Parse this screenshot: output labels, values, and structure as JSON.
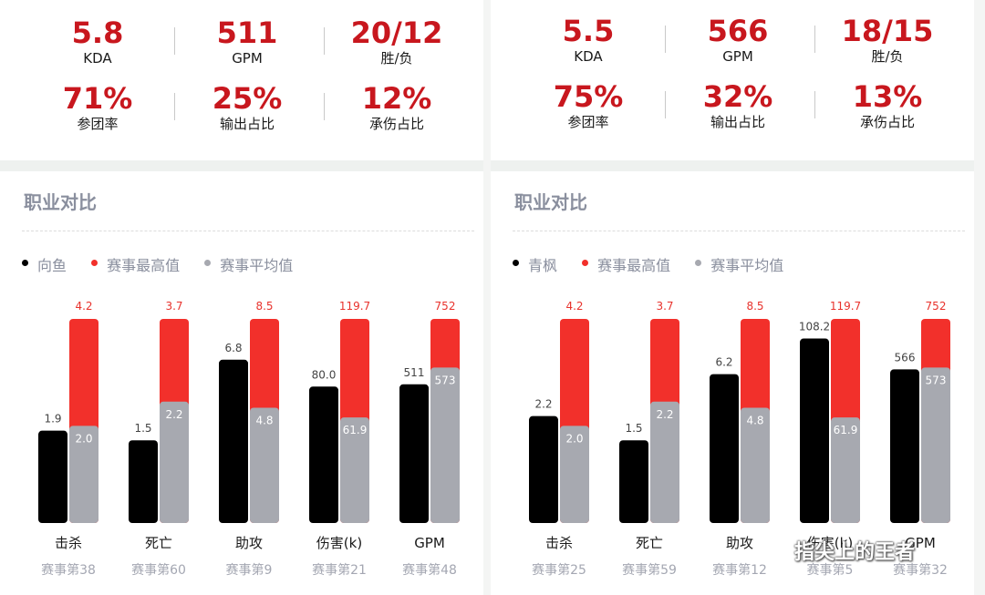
{
  "panels": [
    {
      "stats": [
        {
          "value": "5.8",
          "label": "KDA"
        },
        {
          "value": "511",
          "label": "GPM"
        },
        {
          "value": "20/12",
          "label": "胜/负"
        },
        {
          "value": "71%",
          "label": "参团率"
        },
        {
          "value": "25%",
          "label": "输出占比"
        },
        {
          "value": "12%",
          "label": "承伤占比"
        }
      ],
      "section_title": "职业对比",
      "legend": [
        {
          "name": "向鱼",
          "color": "#000000"
        },
        {
          "name": "赛事最高值",
          "color": "#f2302b"
        },
        {
          "name": "赛事平均值",
          "color": "#a7a9b0"
        }
      ],
      "chart_data": {
        "type": "bar",
        "categories": [
          "击杀",
          "死亡",
          "助攻",
          "伤害(k)",
          "GPM"
        ],
        "sublabels": [
          "赛事第38",
          "赛事第60",
          "赛事第9",
          "赛事第21",
          "赛事第48"
        ],
        "series": [
          {
            "name": "向鱼",
            "values": [
              1.9,
              1.5,
              6.8,
              80.0,
              511
            ],
            "labels": [
              "1.9",
              "1.5",
              "6.8",
              "80.0",
              "511"
            ]
          },
          {
            "name": "赛事最高值",
            "values": [
              4.2,
              3.7,
              8.5,
              119.7,
              752
            ],
            "labels": [
              "4.2",
              "3.7",
              "8.5",
              "119.7",
              "752"
            ]
          },
          {
            "name": "赛事平均值",
            "values": [
              2.0,
              2.2,
              4.8,
              61.9,
              573
            ],
            "labels": [
              "2.0",
              "2.2",
              "4.8",
              "61.9",
              "573"
            ]
          }
        ],
        "per_category_scale": true,
        "grid": false,
        "legend_position": "top-left"
      }
    },
    {
      "stats": [
        {
          "value": "5.5",
          "label": "KDA"
        },
        {
          "value": "566",
          "label": "GPM"
        },
        {
          "value": "18/15",
          "label": "胜/负"
        },
        {
          "value": "75%",
          "label": "参团率"
        },
        {
          "value": "32%",
          "label": "输出占比"
        },
        {
          "value": "13%",
          "label": "承伤占比"
        }
      ],
      "section_title": "职业对比",
      "legend": [
        {
          "name": "青枫",
          "color": "#000000"
        },
        {
          "name": "赛事最高值",
          "color": "#f2302b"
        },
        {
          "name": "赛事平均值",
          "color": "#a7a9b0"
        }
      ],
      "chart_data": {
        "type": "bar",
        "categories": [
          "击杀",
          "死亡",
          "助攻",
          "伤害(k)",
          "GPM"
        ],
        "sublabels": [
          "赛事第25",
          "赛事第59",
          "赛事第12",
          "赛事第5",
          "赛事第32"
        ],
        "series": [
          {
            "name": "青枫",
            "values": [
              2.2,
              1.5,
              6.2,
              108.2,
              566
            ],
            "labels": [
              "2.2",
              "1.5",
              "6.2",
              "108.2",
              "566"
            ]
          },
          {
            "name": "赛事最高值",
            "values": [
              4.2,
              3.7,
              8.5,
              119.7,
              752
            ],
            "labels": [
              "4.2",
              "3.7",
              "8.5",
              "119.7",
              "752"
            ]
          },
          {
            "name": "赛事平均值",
            "values": [
              2.0,
              2.2,
              4.8,
              61.9,
              573
            ],
            "labels": [
              "2.0",
              "2.2",
              "4.8",
              "61.9",
              "573"
            ]
          }
        ],
        "per_category_scale": true,
        "grid": false,
        "legend_position": "top-left"
      }
    }
  ],
  "watermark": {
    "text": "指尖上的王者",
    "icon": "wechat-icon"
  }
}
